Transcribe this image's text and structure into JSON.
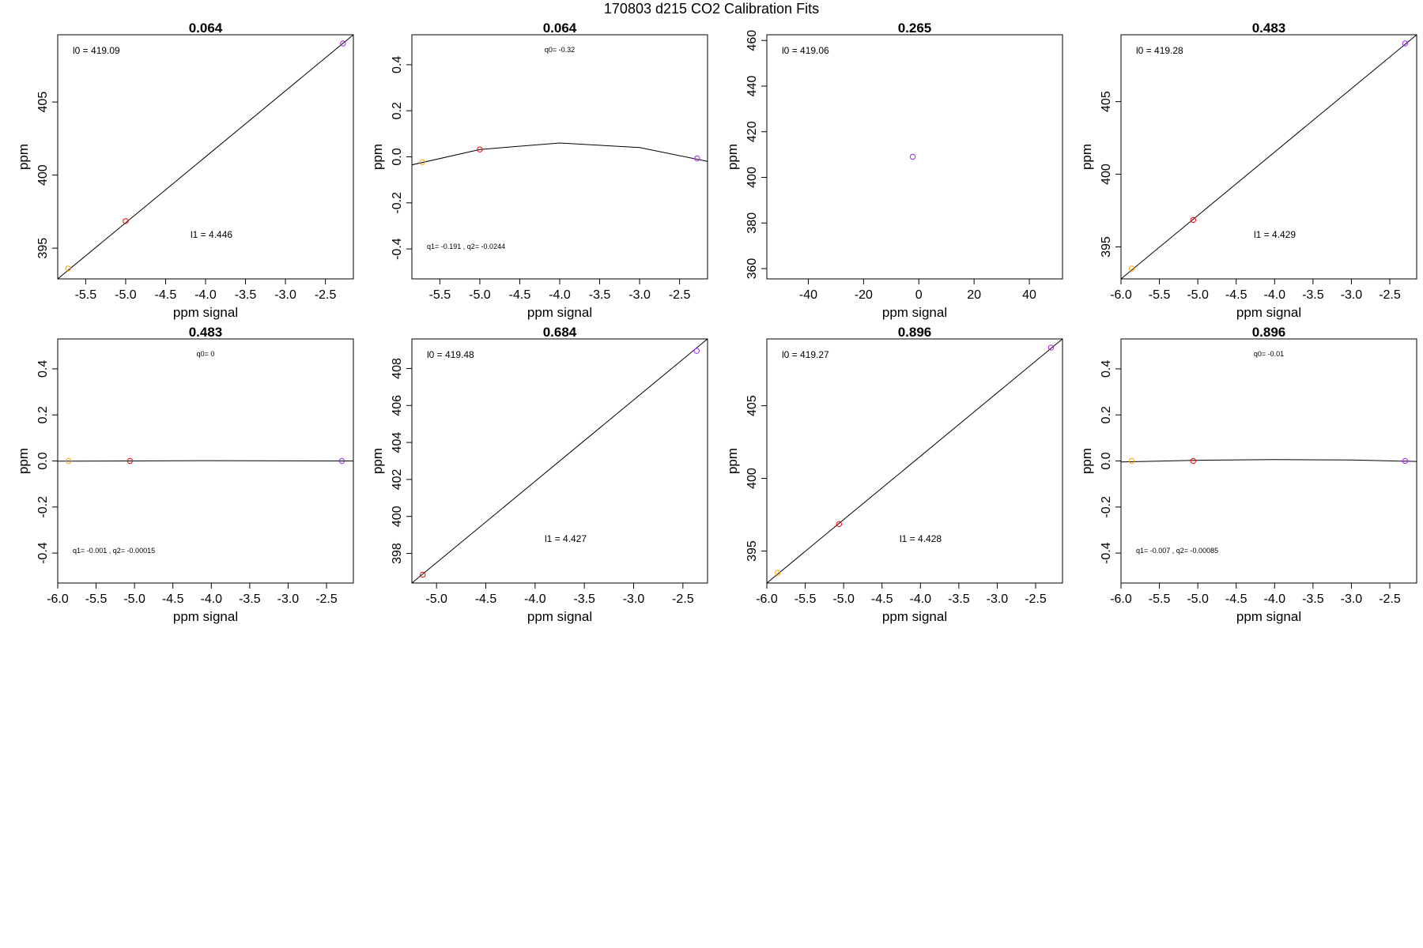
{
  "figure_title": "170803   d215   CO2 Calibration Fits",
  "chart_data": [
    {
      "type": "scatter",
      "title": "0.064",
      "xlabel": "ppm signal",
      "ylabel": "ppm",
      "xlim": [
        -5.85,
        -2.15
      ],
      "ylim": [
        392.9,
        409.6
      ],
      "xticks": [
        -5.5,
        -5.0,
        -4.5,
        -4.0,
        -3.5,
        -3.0,
        -2.5
      ],
      "xtick_labels": [
        "-5.5",
        "-5.0",
        "-4.5",
        "-4.0",
        "-3.5",
        "-3.0",
        "-2.5"
      ],
      "yticks": [
        395,
        400,
        405
      ],
      "ytick_labels": [
        "395",
        "400",
        "405"
      ],
      "points": [
        {
          "x": -5.72,
          "y": 393.6,
          "color": "#ffa500"
        },
        {
          "x": -5.0,
          "y": 396.85,
          "color": "#ff0000"
        },
        {
          "x": -2.28,
          "y": 409.0,
          "color": "#a020f0"
        }
      ],
      "fit": {
        "type": "line",
        "x": [
          -5.85,
          -2.15
        ],
        "y": [
          392.9,
          409.6
        ]
      },
      "annotations": [
        {
          "text": "l0 =  419.09",
          "pos": "top-left",
          "size": "big"
        },
        {
          "text": "l1 =  4.446",
          "pos": "lower-middle",
          "size": "big"
        }
      ]
    },
    {
      "type": "scatter",
      "title": "0.064",
      "xlabel": "ppm signal",
      "ylabel": "ppm",
      "xlim": [
        -5.85,
        -2.15
      ],
      "ylim": [
        -0.53,
        0.53
      ],
      "xticks": [
        -5.5,
        -5.0,
        -4.5,
        -4.0,
        -3.5,
        -3.0,
        -2.5
      ],
      "xtick_labels": [
        "-5.5",
        "-5.0",
        "-4.5",
        "-4.0",
        "-3.5",
        "-3.0",
        "-2.5"
      ],
      "yticks": [
        -0.4,
        -0.2,
        0.0,
        0.2,
        0.4
      ],
      "ytick_labels": [
        "-0.4",
        "-0.2",
        "0.0",
        "0.2",
        "0.4"
      ],
      "points": [
        {
          "x": -5.72,
          "y": -0.023,
          "color": "#ffa500"
        },
        {
          "x": -5.0,
          "y": 0.032,
          "color": "#ff0000"
        },
        {
          "x": -2.28,
          "y": -0.007,
          "color": "#a020f0"
        }
      ],
      "fit": {
        "type": "curve",
        "x": [
          -5.85,
          -5.0,
          -4.0,
          -3.0,
          -2.15
        ],
        "y": [
          -0.035,
          0.032,
          0.06,
          0.04,
          -0.02
        ]
      },
      "annotations": [
        {
          "text": "q0= -0.32",
          "pos": "top-center",
          "size": "small"
        },
        {
          "text": "q1= -0.191 , q2= -0.0244",
          "pos": "bottom-left",
          "size": "small"
        }
      ]
    },
    {
      "type": "scatter",
      "title": "0.265",
      "xlabel": "ppm signal",
      "ylabel": "ppm",
      "xlim": [
        -55,
        52
      ],
      "ylim": [
        355.5,
        462.5
      ],
      "xticks": [
        -40,
        -20,
        0,
        20,
        40
      ],
      "xtick_labels": [
        "-40",
        "-20",
        "0",
        "20",
        "40"
      ],
      "yticks": [
        360,
        380,
        400,
        420,
        440,
        460
      ],
      "ytick_labels": [
        "360",
        "380",
        "400",
        "420",
        "440",
        "460"
      ],
      "points": [
        {
          "x": -2.2,
          "y": 409.0,
          "color": "#a020f0"
        }
      ],
      "fit": null,
      "annotations": [
        {
          "text": "l0 =  419.06",
          "pos": "top-left",
          "size": "big"
        }
      ]
    },
    {
      "type": "scatter",
      "title": "0.483",
      "xlabel": "ppm signal",
      "ylabel": "ppm",
      "xlim": [
        -6.0,
        -2.15
      ],
      "ylim": [
        392.8,
        409.6
      ],
      "xticks": [
        -6.0,
        -5.5,
        -5.0,
        -4.5,
        -4.0,
        -3.5,
        -3.0,
        -2.5
      ],
      "xtick_labels": [
        "-6.0",
        "-5.5",
        "-5.0",
        "-4.5",
        "-4.0",
        "-3.5",
        "-3.0",
        "-2.5"
      ],
      "yticks": [
        395,
        400,
        405
      ],
      "ytick_labels": [
        "395",
        "400",
        "405"
      ],
      "points": [
        {
          "x": -5.86,
          "y": 393.5,
          "color": "#ffa500"
        },
        {
          "x": -5.06,
          "y": 396.85,
          "color": "#ff0000"
        },
        {
          "x": -2.3,
          "y": 409.0,
          "color": "#a020f0"
        }
      ],
      "fit": {
        "type": "line",
        "x": [
          -6.0,
          -2.15
        ],
        "y": [
          392.8,
          409.6
        ]
      },
      "annotations": [
        {
          "text": "l0 =  419.28",
          "pos": "top-left",
          "size": "big"
        },
        {
          "text": "l1 =  4.429",
          "pos": "lower-middle",
          "size": "big"
        }
      ]
    },
    {
      "type": "scatter",
      "title": "0.483",
      "xlabel": "ppm signal",
      "ylabel": "ppm",
      "xlim": [
        -6.0,
        -2.15
      ],
      "ylim": [
        -0.53,
        0.53
      ],
      "xticks": [
        -6.0,
        -5.5,
        -5.0,
        -4.5,
        -4.0,
        -3.5,
        -3.0,
        -2.5
      ],
      "xtick_labels": [
        "-6.0",
        "-5.5",
        "-5.0",
        "-4.5",
        "-4.0",
        "-3.5",
        "-3.0",
        "-2.5"
      ],
      "yticks": [
        -0.4,
        -0.2,
        0.0,
        0.2,
        0.4
      ],
      "ytick_labels": [
        "-0.4",
        "-0.2",
        "0.0",
        "0.2",
        "0.4"
      ],
      "points": [
        {
          "x": -5.86,
          "y": 0.0,
          "color": "#ffa500"
        },
        {
          "x": -5.06,
          "y": 0.0,
          "color": "#ff0000"
        },
        {
          "x": -2.3,
          "y": 0.0,
          "color": "#a020f0"
        }
      ],
      "fit": {
        "type": "curve",
        "x": [
          -6.0,
          -4.0,
          -2.15
        ],
        "y": [
          -0.001,
          0.0015,
          0.0
        ]
      },
      "annotations": [
        {
          "text": "q0= 0",
          "pos": "top-center",
          "size": "small"
        },
        {
          "text": "q1= -0.001 , q2= -0.00015",
          "pos": "bottom-left",
          "size": "small"
        }
      ]
    },
    {
      "type": "scatter",
      "title": "0.684",
      "xlabel": "ppm signal",
      "ylabel": "ppm",
      "xlim": [
        -5.25,
        -2.25
      ],
      "ylim": [
        396.4,
        409.6
      ],
      "xticks": [
        -5.0,
        -4.5,
        -4.0,
        -3.5,
        -3.0,
        -2.5
      ],
      "xtick_labels": [
        "-5.0",
        "-4.5",
        "-4.0",
        "-3.5",
        "-3.0",
        "-2.5"
      ],
      "yticks": [
        398,
        400,
        402,
        404,
        406,
        408
      ],
      "ytick_labels": [
        "398",
        "400",
        "402",
        "404",
        "406",
        "408"
      ],
      "points": [
        {
          "x": -5.14,
          "y": 396.85,
          "color": "#ff0000"
        },
        {
          "x": -2.36,
          "y": 408.95,
          "color": "#a020f0"
        }
      ],
      "fit": {
        "type": "line",
        "x": [
          -5.25,
          -2.25
        ],
        "y": [
          396.4,
          409.6
        ]
      },
      "annotations": [
        {
          "text": "l0 =  419.48",
          "pos": "top-left",
          "size": "big"
        },
        {
          "text": "l1 =  4.427",
          "pos": "lower-middle",
          "size": "big"
        }
      ]
    },
    {
      "type": "scatter",
      "title": "0.896",
      "xlabel": "ppm signal",
      "ylabel": "ppm",
      "xlim": [
        -6.0,
        -2.15
      ],
      "ylim": [
        392.8,
        409.6
      ],
      "xticks": [
        -6.0,
        -5.5,
        -5.0,
        -4.5,
        -4.0,
        -3.5,
        -3.0,
        -2.5
      ],
      "xtick_labels": [
        "-6.0",
        "-5.5",
        "-5.0",
        "-4.5",
        "-4.0",
        "-3.5",
        "-3.0",
        "-2.5"
      ],
      "yticks": [
        395,
        400,
        405
      ],
      "ytick_labels": [
        "395",
        "400",
        "405"
      ],
      "points": [
        {
          "x": -5.86,
          "y": 393.5,
          "color": "#ffa500"
        },
        {
          "x": -5.06,
          "y": 396.85,
          "color": "#ff0000"
        },
        {
          "x": -2.3,
          "y": 409.0,
          "color": "#a020f0"
        }
      ],
      "fit": {
        "type": "line",
        "x": [
          -6.0,
          -2.15
        ],
        "y": [
          392.8,
          409.6
        ]
      },
      "annotations": [
        {
          "text": "l0 =  419.27",
          "pos": "top-left",
          "size": "big"
        },
        {
          "text": "l1 =  4.428",
          "pos": "lower-middle",
          "size": "big"
        }
      ]
    },
    {
      "type": "scatter",
      "title": "0.896",
      "xlabel": "ppm signal",
      "ylabel": "ppm",
      "xlim": [
        -6.0,
        -2.15
      ],
      "ylim": [
        -0.53,
        0.53
      ],
      "xticks": [
        -6.0,
        -5.5,
        -5.0,
        -4.5,
        -4.0,
        -3.5,
        -3.0,
        -2.5
      ],
      "xtick_labels": [
        "-6.0",
        "-5.5",
        "-5.0",
        "-4.5",
        "-4.0",
        "-3.5",
        "-3.0",
        "-2.5"
      ],
      "yticks": [
        -0.4,
        -0.2,
        0.0,
        0.2,
        0.4
      ],
      "ytick_labels": [
        "-0.4",
        "-0.2",
        "0.0",
        "0.2",
        "0.4"
      ],
      "points": [
        {
          "x": -5.86,
          "y": 0.0,
          "color": "#ffa500"
        },
        {
          "x": -5.06,
          "y": 0.0,
          "color": "#ff0000"
        },
        {
          "x": -2.3,
          "y": 0.0,
          "color": "#a020f0"
        }
      ],
      "fit": {
        "type": "curve",
        "x": [
          -6.0,
          -5.0,
          -4.0,
          -3.0,
          -2.15
        ],
        "y": [
          -0.004,
          0.003,
          0.006,
          0.004,
          -0.002
        ]
      },
      "annotations": [
        {
          "text": "q0= -0.01",
          "pos": "top-center",
          "size": "small"
        },
        {
          "text": "q1= -0.007 , q2= -0.00085",
          "pos": "bottom-left",
          "size": "small"
        }
      ]
    }
  ]
}
